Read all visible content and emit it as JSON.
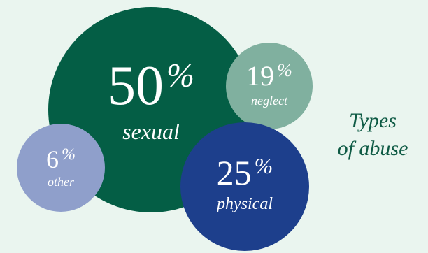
{
  "chart_data": {
    "type": "bubble",
    "title_line1": "Types",
    "title_line2": "of abuse",
    "percent_sign": "%",
    "categories": [
      "sexual",
      "physical",
      "neglect",
      "other"
    ],
    "values": [
      50,
      25,
      19,
      6
    ],
    "colors": [
      "#045e45",
      "#1d3f8c",
      "#80b09f",
      "#8f9fcb"
    ]
  }
}
